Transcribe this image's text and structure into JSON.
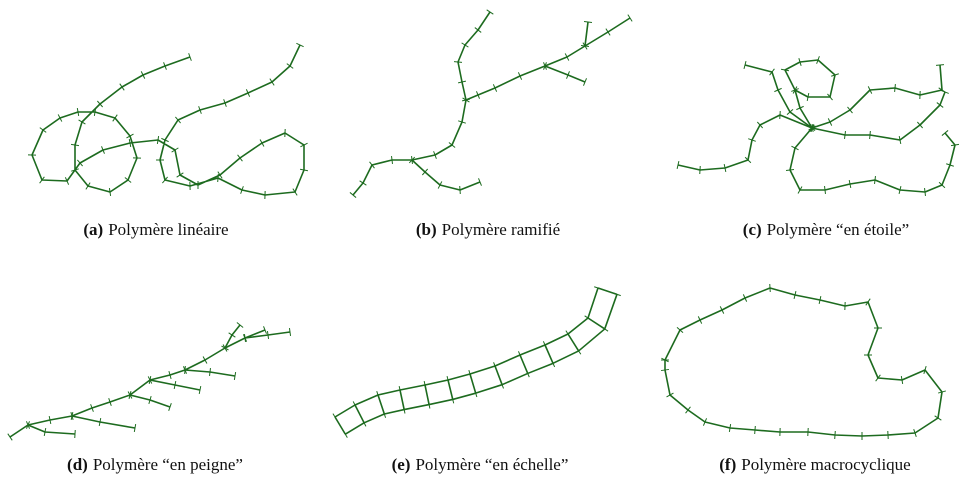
{
  "subfigures": [
    {
      "label": "(a)",
      "caption": "Polymère linéaire"
    },
    {
      "label": "(b)",
      "caption": "Polymère ramifié"
    },
    {
      "label": "(c)",
      "caption": "Polymère “en étoile”"
    },
    {
      "label": "(d)",
      "caption": "Polymère “en peigne”"
    },
    {
      "label": "(e)",
      "caption": "Polymère “en échelle”"
    },
    {
      "label": "(f)",
      "caption": "Polymère macrocyclique"
    }
  ]
}
